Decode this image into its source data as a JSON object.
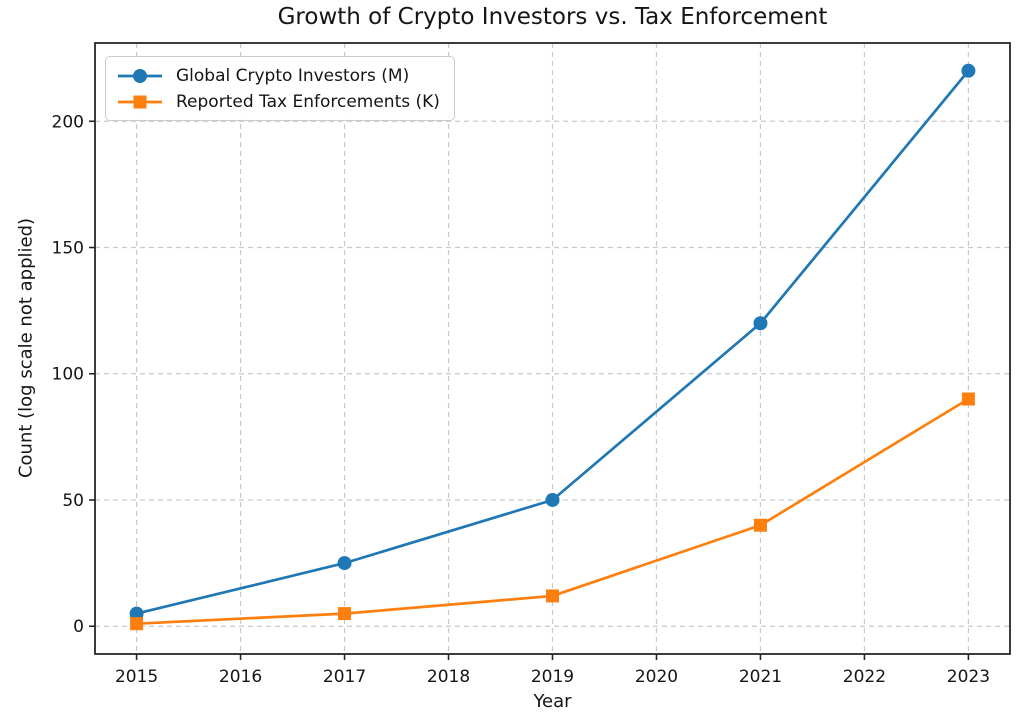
{
  "chart_data": {
    "type": "line",
    "title": "Growth of Crypto Investors vs. Tax Enforcement",
    "xlabel": "Year",
    "ylabel": "Count (log scale not applied)",
    "x": [
      2015,
      2017,
      2019,
      2021,
      2023
    ],
    "series": [
      {
        "name": "Global Crypto Investors (M)",
        "values": [
          5,
          25,
          50,
          120,
          220
        ],
        "color": "#1f77b4",
        "marker": "circle"
      },
      {
        "name": "Reported Tax Enforcements (K)",
        "values": [
          1,
          5,
          12,
          40,
          90
        ],
        "color": "#ff7f0e",
        "marker": "square"
      }
    ],
    "xticks": [
      2015,
      2016,
      2017,
      2018,
      2019,
      2020,
      2021,
      2022,
      2023
    ],
    "yticks": [
      0,
      50,
      100,
      150,
      200
    ],
    "xlim": [
      2014.6,
      2023.4
    ],
    "ylim": [
      -11,
      231
    ],
    "grid": true,
    "grid_style": "dashed",
    "legend_position": "upper-left",
    "axis_color": "#262626",
    "grid_color": "#c9c9c9",
    "text_color": "#151515",
    "background": "#ffffff"
  }
}
